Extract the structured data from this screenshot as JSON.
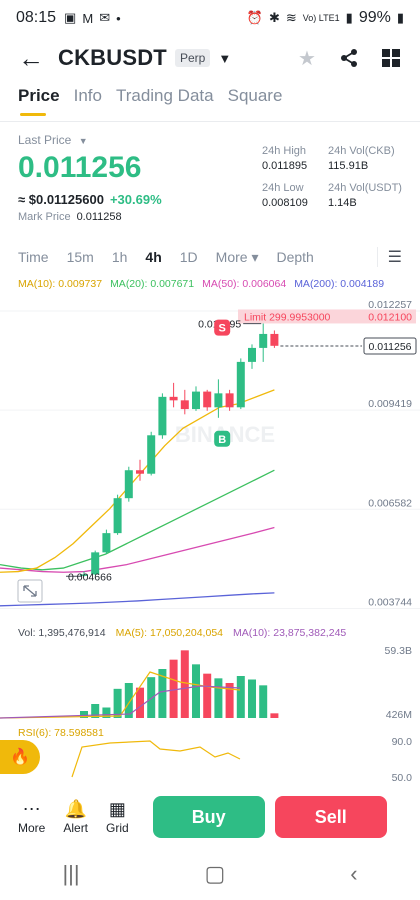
{
  "status_bar": {
    "time": "08:15",
    "battery": "99%",
    "network": "Vo) LTE1"
  },
  "header": {
    "pair": "CKBUSDT",
    "tag": "Perp"
  },
  "tabs": [
    {
      "label": "Price"
    },
    {
      "label": "Info"
    },
    {
      "label": "Trading Data"
    },
    {
      "label": "Square"
    }
  ],
  "price": {
    "last_label": "Last Price",
    "last": "0.011256",
    "usd": "≈ $0.01125600",
    "change": "+30.69%",
    "mark_label": "Mark Price",
    "mark": "0.011258"
  },
  "stats": {
    "high_label": "24h High",
    "high": "0.011895",
    "vol_ckb_label": "24h Vol(CKB)",
    "vol_ckb": "115.91B",
    "low_label": "24h Low",
    "low": "0.008109",
    "vol_usdt_label": "24h Vol(USDT)",
    "vol_usdt": "1.14B"
  },
  "timeframes": [
    {
      "label": "Time"
    },
    {
      "label": "15m"
    },
    {
      "label": "1h"
    },
    {
      "label": "4h"
    },
    {
      "label": "1D"
    },
    {
      "label": "More ▾"
    },
    {
      "label": "Depth"
    }
  ],
  "ma": {
    "ma10": "MA(10): 0.009737",
    "ma20": "MA(20): 0.007671",
    "ma50": "MA(50): 0.006064",
    "ma200": "MA(200): 0.004189"
  },
  "colors": {
    "up": "#2ebd85",
    "down": "#f6465d",
    "ma10": "#f0b90b",
    "ma20": "#3cc05f",
    "ma50": "#d74ab1",
    "ma200": "#5a63d8",
    "accent": "#f0b90b"
  },
  "chart_data": {
    "type": "candlestick",
    "y_axis_labels": [
      "0.012257",
      "0.009419",
      "0.006582",
      "0.003744"
    ],
    "ylim": [
      0.0035,
      0.0128
    ],
    "high_label": "0.011895",
    "low_label": "0.004666",
    "current_label": "0.011256",
    "limit_label": "Limit 299.9953000",
    "limit_price": "0.012100",
    "watermark": "BINANCE",
    "marker_sell": "S",
    "marker_buy": "B",
    "candles": [
      [
        0.0047,
        0.0048,
        0.00466,
        0.00472
      ],
      [
        0.00472,
        0.0054,
        0.0047,
        0.00535
      ],
      [
        0.00535,
        0.006,
        0.0053,
        0.0059
      ],
      [
        0.0059,
        0.007,
        0.00585,
        0.0069
      ],
      [
        0.0069,
        0.0078,
        0.0068,
        0.0077
      ],
      [
        0.0077,
        0.008,
        0.0074,
        0.0076
      ],
      [
        0.0076,
        0.0088,
        0.00755,
        0.0087
      ],
      [
        0.0087,
        0.0099,
        0.0086,
        0.0098
      ],
      [
        0.0098,
        0.0102,
        0.0095,
        0.0097
      ],
      [
        0.0097,
        0.01,
        0.0093,
        0.00945
      ],
      [
        0.00945,
        0.0101,
        0.0094,
        0.00995
      ],
      [
        0.00995,
        0.01,
        0.0094,
        0.0095
      ],
      [
        0.0095,
        0.0103,
        0.0092,
        0.0099
      ],
      [
        0.0099,
        0.01,
        0.0094,
        0.0095
      ],
      [
        0.0095,
        0.0109,
        0.00945,
        0.0108
      ],
      [
        0.0108,
        0.0113,
        0.0106,
        0.0112
      ],
      [
        0.0112,
        0.0119,
        0.0108,
        0.0116
      ],
      [
        0.0116,
        0.0117,
        0.0112,
        0.01126
      ]
    ],
    "ma10_line": [
      0.00478,
      0.0048,
      0.0049,
      0.0052,
      0.0056,
      0.0061,
      0.0066,
      0.0072,
      0.0078,
      0.0084,
      0.0089,
      0.0092,
      0.0095,
      0.0096,
      0.0098,
      0.01
    ],
    "ma20_line": [
      0.005,
      0.0049,
      0.00485,
      0.0049,
      0.0051,
      0.0053,
      0.0056,
      0.0059,
      0.0062,
      0.0065,
      0.0068,
      0.0071,
      0.0074,
      0.0077
    ],
    "ma50_line": [
      0.0049,
      0.00485,
      0.0048,
      0.00478,
      0.0048,
      0.0049,
      0.005,
      0.00515,
      0.0053,
      0.00545,
      0.0056,
      0.00575,
      0.0059,
      0.00606
    ],
    "ma200_line": [
      0.00382,
      0.00384,
      0.00386,
      0.00388,
      0.0039,
      0.00393,
      0.00396,
      0.004,
      0.00404,
      0.00408,
      0.00412,
      0.00416,
      0.00419
    ]
  },
  "volume": {
    "vol_text": "Vol: 1,395,476,914",
    "ma5_text": "MA(5): 17,050,204,054",
    "ma10_text": "MA(10): 23,875,382,245",
    "axis_top": "59.3B",
    "axis_bottom": "426M",
    "bars": [
      0.6,
      1.2,
      0.9,
      2.5,
      3.0,
      2.6,
      3.5,
      4.2,
      5.0,
      5.8,
      4.6,
      3.8,
      3.4,
      3.0,
      3.6,
      3.3,
      2.8,
      0.4
    ]
  },
  "rsi": {
    "text": "RSI(6): 78.598581",
    "axis_top": "90.0",
    "axis_bottom": "50.0"
  },
  "bottom": {
    "more": "More",
    "alert": "Alert",
    "grid": "Grid",
    "buy": "Buy",
    "sell": "Sell"
  }
}
